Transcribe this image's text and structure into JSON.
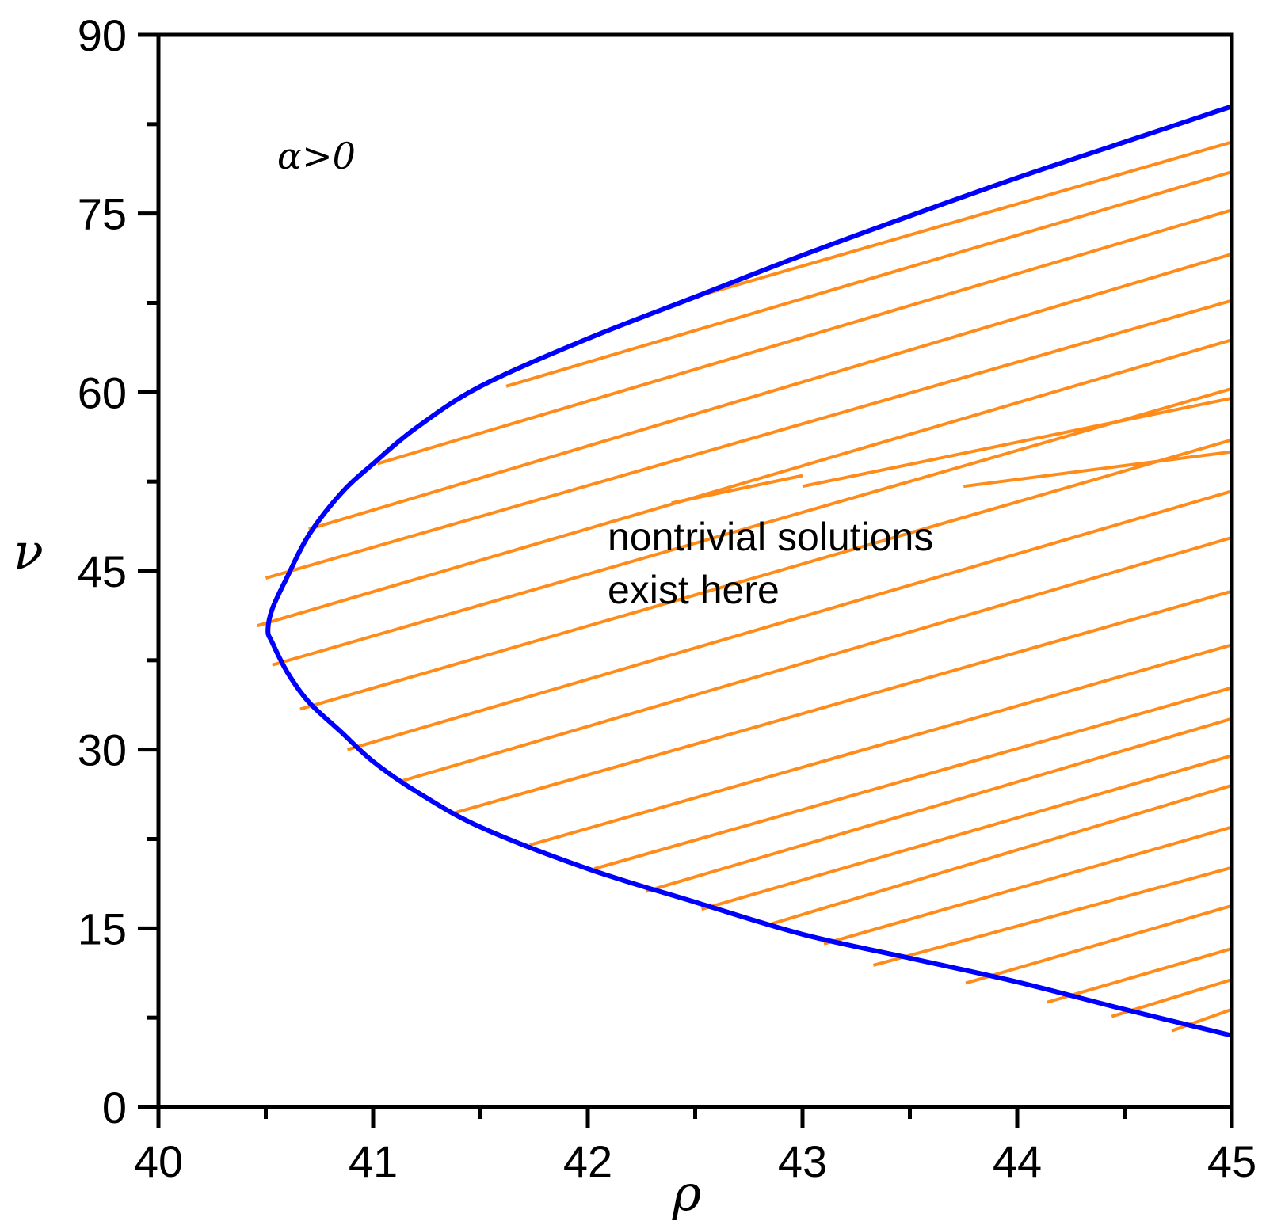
{
  "chart_data": {
    "type": "line",
    "xlabel": "ρ",
    "ylabel": "ν",
    "xlim": [
      40,
      45
    ],
    "ylim": [
      0,
      90
    ],
    "x_ticks": [
      "40",
      "41",
      "42",
      "43",
      "44",
      "45"
    ],
    "y_ticks": [
      "0",
      "15",
      "30",
      "45",
      "60",
      "75",
      "90"
    ],
    "x_tick_values": [
      40,
      41,
      42,
      43,
      44,
      45
    ],
    "y_tick_values": [
      0,
      15,
      30,
      45,
      60,
      75,
      90
    ],
    "x_minor_ticks": [
      40.5,
      41.5,
      42.5,
      43.5,
      44.5
    ],
    "y_minor_ticks": [
      7.5,
      22.5,
      37.5,
      52.5,
      67.5,
      82.5
    ],
    "condition_label": "α>0",
    "annotation_lines": [
      "nontrivial solutions",
      "exist here"
    ],
    "colors": {
      "boundary": "#0000ff",
      "hatch": "#ff8c1a",
      "axes": "#000000"
    },
    "series": [
      {
        "x": [
          45.0,
          44.5,
          44.0,
          43.5,
          43.0,
          42.5,
          42.0,
          41.5,
          41.2,
          41.0,
          40.85,
          40.7,
          40.6,
          40.53,
          40.51,
          40.53,
          40.6,
          40.7,
          40.85,
          41.0,
          41.2,
          41.5,
          42.0,
          42.5,
          43.0,
          43.5,
          44.0,
          44.5,
          45.0
        ],
        "y": [
          6.0,
          8.2,
          10.5,
          12.5,
          14.5,
          17.2,
          20.0,
          23.5,
          26.5,
          29.0,
          31.5,
          34.0,
          36.5,
          39.0,
          40.0,
          41.8,
          44.5,
          48.0,
          51.5,
          54.0,
          57.0,
          60.5,
          64.5,
          68.0,
          71.5,
          74.8,
          78.0,
          81.0,
          84.0
        ]
      }
    ],
    "hatch_segments": [
      [
        42.5,
        68.0,
        45.0,
        81.0
      ],
      [
        41.62,
        60.5,
        45.0,
        78.5
      ],
      [
        41.02,
        54.0,
        45.0,
        75.3
      ],
      [
        40.7,
        48.5,
        45.0,
        71.6
      ],
      [
        40.5,
        44.4,
        45.0,
        67.7
      ],
      [
        40.46,
        40.4,
        45.0,
        64.4
      ],
      [
        40.53,
        37.1,
        45.0,
        60.3
      ],
      [
        40.66,
        33.4,
        45.0,
        56.0
      ],
      [
        40.88,
        30.0,
        45.0,
        51.7
      ],
      [
        41.12,
        27.3,
        45.0,
        47.8
      ],
      [
        41.38,
        24.7,
        45.0,
        43.3
      ],
      [
        41.73,
        22.0,
        45.0,
        38.8
      ],
      [
        42.03,
        20.0,
        45.0,
        35.2
      ],
      [
        42.27,
        18.1,
        45.0,
        32.6
      ],
      [
        42.53,
        16.6,
        45.0,
        29.5
      ],
      [
        42.86,
        15.4,
        45.0,
        27.0
      ],
      [
        43.1,
        13.7,
        45.0,
        23.5
      ],
      [
        43.33,
        11.9,
        45.0,
        20.1
      ],
      [
        43.76,
        10.4,
        45.0,
        16.9
      ],
      [
        44.14,
        8.8,
        45.0,
        13.3
      ],
      [
        44.44,
        7.6,
        45.0,
        10.7
      ],
      [
        44.72,
        6.4,
        45.0,
        8.2
      ],
      [
        42.39,
        50.7,
        43.0,
        53.0
      ],
      [
        43.0,
        52.1,
        45.0,
        59.5
      ],
      [
        43.75,
        52.1,
        45.0,
        55.0
      ]
    ]
  }
}
